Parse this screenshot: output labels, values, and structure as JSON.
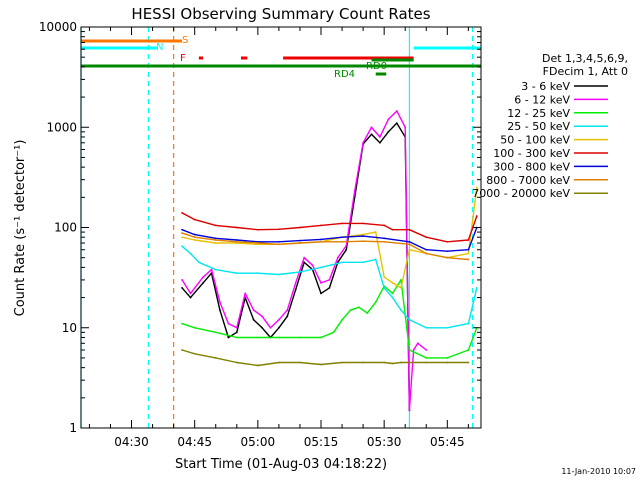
{
  "chart_data": {
    "type": "line",
    "title": "HESSI Observing Summary Count Rates",
    "xlabel": "Start Time (01-Aug-03 04:18:22)",
    "ylabel": "Count Rate (s⁻¹ detector⁻¹)",
    "y_scale": "log",
    "ylim": [
      1,
      10000
    ],
    "xlim": [
      "04:18",
      "05:53"
    ],
    "x_ticks": [
      "04:30",
      "04:45",
      "05:00",
      "05:15",
      "05:30",
      "05:45"
    ],
    "y_ticks": [
      "1",
      "10",
      "100",
      "1000",
      "10000"
    ],
    "footer_date": "11-Jan-2010 10:07",
    "legend": {
      "placement": "right",
      "header": [
        "Det 1,3,4,5,6,9,",
        "FDecim 1, Att 0"
      ],
      "entries": [
        {
          "label": "3 - 6 keV",
          "color": "#000000"
        },
        {
          "label": "6 - 12 keV",
          "color": "#ff00ff"
        },
        {
          "label": "12 - 25 keV",
          "color": "#00ee00"
        },
        {
          "label": "25 - 50 keV",
          "color": "#00e5ee"
        },
        {
          "label": "50 - 100 keV",
          "color": "#e6c200"
        },
        {
          "label": "100 - 300 keV",
          "color": "#dd0000"
        },
        {
          "label": "300 - 800 keV",
          "color": "#0000dd"
        },
        {
          "label": "800 - 7000 keV",
          "color": "#e08000"
        },
        {
          "label": "7000 - 20000 keV",
          "color": "#808000"
        }
      ]
    },
    "flag_bars": [
      {
        "label": "S",
        "color": "#ff7700",
        "segments": [
          [
            "04:18",
            "04:42"
          ]
        ]
      },
      {
        "label": "N",
        "color": "#00ffff",
        "segments": [
          [
            "04:18",
            "04:36"
          ],
          [
            "05:37",
            "05:53"
          ]
        ]
      },
      {
        "label": "F",
        "color": "#ee0000",
        "segments": [
          [
            "04:46",
            "04:47"
          ],
          [
            "04:56",
            "04:57.5"
          ],
          [
            "05:06",
            "05:37"
          ]
        ]
      },
      {
        "label": "RD0",
        "color": "#008800",
        "segments": [
          [
            "05:27",
            "05:37"
          ]
        ]
      },
      {
        "label": "RD4",
        "color": "#008800",
        "segments": [
          [
            "05:28",
            "05:30.5"
          ]
        ]
      },
      {
        "label": "",
        "color": "#008800",
        "segments": [
          [
            "04:18",
            "05:53"
          ]
        ]
      }
    ],
    "vlines": [
      {
        "time": "04:18",
        "color": "#00ffff",
        "style": "solid"
      },
      {
        "time": "04:34",
        "color": "#00ffff",
        "style": "dashed"
      },
      {
        "time": "04:40",
        "color": "#ff7700",
        "style": "dashed"
      },
      {
        "time": "05:36",
        "color": "#00ffff",
        "style": "solid"
      },
      {
        "time": "05:51",
        "color": "#00ffff",
        "style": "dashed"
      }
    ],
    "series": [
      {
        "name": "3 - 6 keV",
        "color": "#000000",
        "x": [
          "04:42",
          "04:44",
          "04:47",
          "04:49",
          "04:51",
          "04:53",
          "04:55",
          "04:57",
          "04:59",
          "05:01",
          "05:03",
          "05:05",
          "05:07",
          "05:09",
          "05:11",
          "05:13",
          "05:15",
          "05:17",
          "05:19",
          "05:21",
          "05:23",
          "05:25",
          "05:27",
          "05:29",
          "05:31",
          "05:33",
          "05:35",
          "05:36"
        ],
        "values": [
          25,
          20,
          28,
          35,
          15,
          8,
          9,
          20,
          12,
          10,
          8,
          10,
          13,
          24,
          45,
          38,
          22,
          25,
          45,
          60,
          200,
          680,
          850,
          700,
          900,
          1100,
          800,
          1.5
        ]
      },
      {
        "name": "6 - 12 keV",
        "color": "#ff00ff",
        "x": [
          "04:42",
          "04:44",
          "04:47",
          "04:49",
          "04:51",
          "04:53",
          "04:55",
          "04:57",
          "04:59",
          "05:01",
          "05:03",
          "05:05",
          "05:07",
          "05:09",
          "05:11",
          "05:13",
          "05:15",
          "05:17",
          "05:19",
          "05:21",
          "05:23",
          "05:25",
          "05:27",
          "05:29",
          "05:31",
          "05:33",
          "05:35",
          "05:36",
          "05:37",
          "05:38",
          "05:40"
        ],
        "values": [
          30,
          22,
          32,
          38,
          18,
          11,
          10,
          22,
          15,
          13,
          10,
          12,
          15,
          28,
          50,
          42,
          28,
          30,
          50,
          66,
          230,
          700,
          1000,
          800,
          1200,
          1450,
          1000,
          1.5,
          6,
          7,
          6
        ]
      },
      {
        "name": "12 - 25 keV",
        "color": "#00ee00",
        "x": [
          "04:42",
          "04:45",
          "04:50",
          "04:55",
          "05:00",
          "05:05",
          "05:10",
          "05:15",
          "05:18",
          "05:20",
          "05:22",
          "05:24",
          "05:26",
          "05:28",
          "05:30",
          "05:32",
          "05:34",
          "05:36",
          "05:40",
          "05:45",
          "05:50",
          "05:52"
        ],
        "values": [
          11,
          10,
          9,
          8,
          8,
          8,
          8,
          8,
          9,
          12,
          15,
          16,
          14,
          18,
          26,
          22,
          30,
          6,
          5,
          5,
          6,
          10
        ]
      },
      {
        "name": "25 - 50 keV",
        "color": "#00e5ee",
        "x": [
          "04:42",
          "04:44",
          "04:46",
          "04:50",
          "04:55",
          "05:00",
          "05:05",
          "05:10",
          "05:15",
          "05:20",
          "05:25",
          "05:28",
          "05:30",
          "05:32",
          "05:34",
          "05:36",
          "05:40",
          "05:45",
          "05:50",
          "05:52"
        ],
        "values": [
          65,
          55,
          45,
          38,
          35,
          35,
          34,
          36,
          40,
          45,
          45,
          48,
          25,
          20,
          15,
          12,
          10,
          10,
          11,
          25
        ]
      },
      {
        "name": "50 - 100 keV",
        "color": "#e6c200",
        "x": [
          "04:42",
          "04:45",
          "04:50",
          "04:55",
          "05:00",
          "05:05",
          "05:10",
          "05:15",
          "05:20",
          "05:25",
          "05:28",
          "05:30",
          "05:32",
          "05:34",
          "05:36",
          "05:40",
          "05:45",
          "05:50",
          "05:52"
        ],
        "values": [
          80,
          75,
          70,
          70,
          68,
          68,
          70,
          72,
          80,
          85,
          90,
          32,
          28,
          25,
          60,
          55,
          50,
          55,
          250
        ]
      },
      {
        "name": "100 - 300 keV",
        "color": "#dd0000",
        "x": [
          "04:42",
          "04:45",
          "04:50",
          "04:55",
          "05:00",
          "05:05",
          "05:10",
          "05:15",
          "05:20",
          "05:25",
          "05:30",
          "05:32",
          "05:36",
          "05:40",
          "05:45",
          "05:50",
          "05:52"
        ],
        "values": [
          140,
          120,
          105,
          100,
          95,
          96,
          100,
          105,
          110,
          110,
          105,
          95,
          95,
          80,
          72,
          75,
          130
        ]
      },
      {
        "name": "300 - 800 keV",
        "color": "#0000dd",
        "x": [
          "04:42",
          "04:45",
          "04:50",
          "04:55",
          "05:00",
          "05:05",
          "05:10",
          "05:15",
          "05:20",
          "05:25",
          "05:30",
          "05:36",
          "05:40",
          "05:45",
          "05:50",
          "05:52"
        ],
        "values": [
          95,
          85,
          78,
          75,
          72,
          72,
          74,
          76,
          80,
          82,
          78,
          72,
          60,
          58,
          60,
          100
        ]
      },
      {
        "name": "800 - 7000 keV",
        "color": "#e08000",
        "x": [
          "04:42",
          "04:45",
          "04:50",
          "04:55",
          "05:00",
          "05:05",
          "05:10",
          "05:15",
          "05:20",
          "05:25",
          "05:30",
          "05:36",
          "05:40",
          "05:45",
          "05:50"
        ],
        "values": [
          88,
          80,
          75,
          72,
          70,
          68,
          70,
          72,
          72,
          73,
          72,
          68,
          55,
          50,
          48
        ]
      },
      {
        "name": "7000 - 20000 keV",
        "color": "#808000",
        "x": [
          "04:42",
          "04:45",
          "04:50",
          "04:55",
          "05:00",
          "05:05",
          "05:10",
          "05:15",
          "05:20",
          "05:25",
          "05:30",
          "05:32",
          "05:34",
          "05:36",
          "05:40",
          "05:45",
          "05:50"
        ],
        "values": [
          6,
          5.5,
          5,
          4.5,
          4.2,
          4.5,
          4.5,
          4.3,
          4.5,
          4.5,
          4.5,
          4.4,
          4.5,
          4.5,
          4.5,
          4.5,
          4.5
        ]
      }
    ]
  }
}
